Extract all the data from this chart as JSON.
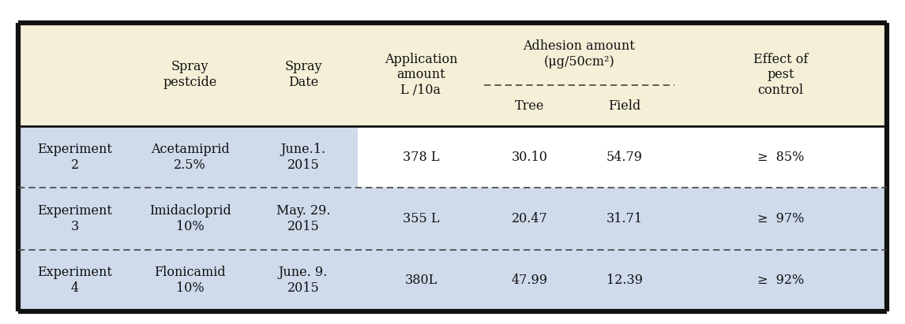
{
  "header_bg": "#f5efd7",
  "row_bg_blue": "#cfdaeb",
  "row_bg_white": "#ffffff",
  "border_color": "#111111",
  "dashed_color": "#444444",
  "text_color": "#111111",
  "rows": [
    {
      "exp": "Experiment\n2",
      "pesticide": "Acetamiprid\n2.5%",
      "date": "June.1.\n2015",
      "amount": "378 L",
      "tree": "30.10",
      "field": "54.79",
      "effect": "≥  85%"
    },
    {
      "exp": "Experiment\n3",
      "pesticide": "Imidacloprid\n10%",
      "date": "May. 29.\n2015",
      "amount": "355 L",
      "tree": "20.47",
      "field": "31.71",
      "effect": "≥  97%"
    },
    {
      "exp": "Experiment\n4",
      "pesticide": "Flonicamid\n10%",
      "date": "June. 9.\n2015",
      "amount": "380L",
      "tree": "47.99",
      "field": "12.39",
      "effect": "≥  92%"
    }
  ],
  "figsize": [
    11.46,
    4.11
  ],
  "dpi": 100
}
